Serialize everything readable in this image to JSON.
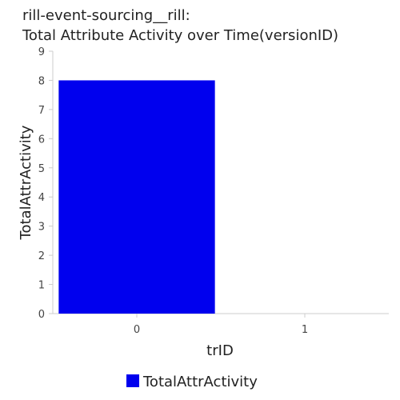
{
  "chart_data": {
    "type": "bar",
    "title_line1": "rill-event-sourcing__rill:",
    "title_line2": "Total Attribute Activity over Time(versionID)",
    "xlabel": "trID",
    "ylabel": "TotalAttrActivity",
    "categories": [
      "0",
      "1"
    ],
    "series": [
      {
        "name": "TotalAttrActivity",
        "values": [
          8,
          0
        ],
        "color": "#0000ee"
      }
    ],
    "ylim": [
      0,
      9
    ],
    "yticks": [
      "0",
      "1",
      "2",
      "3",
      "4",
      "5",
      "6",
      "7",
      "8",
      "9"
    ],
    "grid": false,
    "legend_position": "bottom-center"
  }
}
